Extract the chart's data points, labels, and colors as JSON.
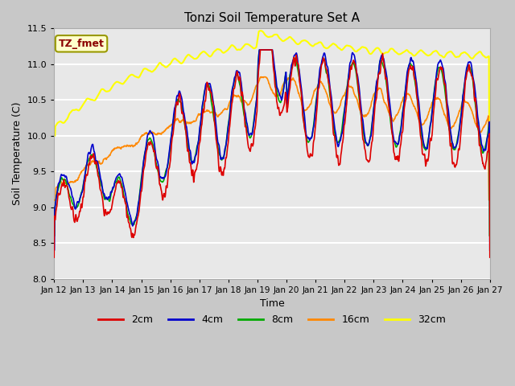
{
  "title": "Tonzi Soil Temperature Set A",
  "xlabel": "Time",
  "ylabel": "Soil Temperature (C)",
  "ylim": [
    8.0,
    11.5
  ],
  "yticks": [
    8.0,
    8.5,
    9.0,
    9.5,
    10.0,
    10.5,
    11.0,
    11.5
  ],
  "annotation_label": "TZ_fmet",
  "annotation_text_color": "#8B0000",
  "annotation_box_facecolor": "#FFFFCC",
  "annotation_box_edgecolor": "#999900",
  "legend_labels": [
    "2cm",
    "4cm",
    "8cm",
    "16cm",
    "32cm"
  ],
  "line_colors": [
    "#DD0000",
    "#0000CC",
    "#00AA00",
    "#FF8800",
    "#FFFF00"
  ],
  "line_widths": [
    1.2,
    1.2,
    1.2,
    1.2,
    1.5
  ],
  "fig_facecolor": "#C8C8C8",
  "axes_facecolor": "#E8E8E8",
  "grid_color": "#FFFFFF",
  "n_days": 15,
  "start_day": 12,
  "pts_per_day": 96
}
